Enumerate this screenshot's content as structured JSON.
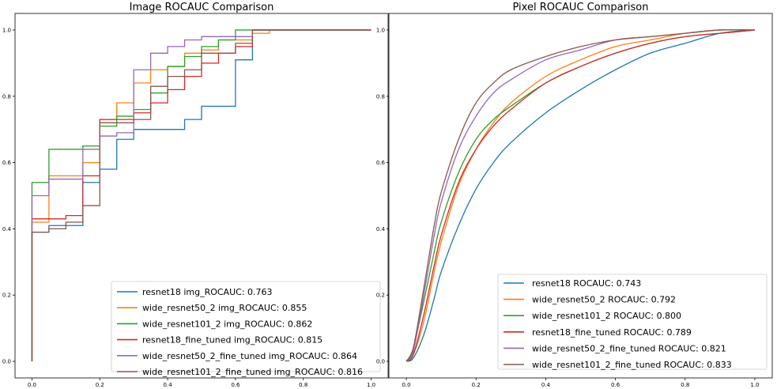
{
  "chart_data": [
    {
      "type": "line",
      "title": "Image ROCAUC Comparison",
      "xlim": [
        -0.05,
        1.05
      ],
      "ylim": [
        -0.05,
        1.05
      ],
      "xticks": [
        "0.0",
        "0.2",
        "0.4",
        "0.6",
        "0.8",
        "1.0"
      ],
      "yticks": [
        "0.0",
        "0.2",
        "0.4",
        "0.6",
        "0.8",
        "1.0"
      ],
      "legend_position": "lower right",
      "step": true,
      "series": [
        {
          "name": "resnet18 img_ROCAUC: 0.763",
          "color": "#1f77b4",
          "x": [
            0,
            0,
            0.05,
            0.1,
            0.15,
            0.2,
            0.25,
            0.3,
            0.35,
            0.4,
            0.45,
            0.5,
            0.55,
            0.6,
            0.65,
            1.0
          ],
          "y": [
            0,
            0.39,
            0.41,
            0.41,
            0.54,
            0.58,
            0.67,
            0.7,
            0.7,
            0.7,
            0.73,
            0.77,
            0.77,
            0.91,
            1.0,
            1.0
          ]
        },
        {
          "name": "wide_resnet50_2 img_ROCAUC: 0.855",
          "color": "#ff7f0e",
          "x": [
            0,
            0,
            0.05,
            0.1,
            0.15,
            0.2,
            0.25,
            0.3,
            0.35,
            0.4,
            0.45,
            0.5,
            0.55,
            0.6,
            0.65,
            0.7,
            1.0
          ],
          "y": [
            0,
            0.42,
            0.56,
            0.56,
            0.6,
            0.73,
            0.78,
            0.84,
            0.88,
            0.89,
            0.93,
            0.94,
            0.97,
            0.97,
            0.99,
            1.0,
            1.0
          ]
        },
        {
          "name": "wide_resnet101_2 img_ROCAUC: 0.862",
          "color": "#2ca02c",
          "x": [
            0,
            0,
            0.05,
            0.1,
            0.15,
            0.2,
            0.25,
            0.3,
            0.35,
            0.4,
            0.45,
            0.5,
            0.55,
            0.6,
            0.65,
            1.0
          ],
          "y": [
            0,
            0.54,
            0.64,
            0.64,
            0.65,
            0.71,
            0.74,
            0.76,
            0.81,
            0.89,
            0.92,
            0.95,
            0.97,
            1.0,
            1.0,
            1.0
          ]
        },
        {
          "name": "resnet18_fine_tuned img_ROCAUC: 0.815",
          "color": "#d62728",
          "x": [
            0,
            0,
            0.05,
            0.1,
            0.15,
            0.2,
            0.25,
            0.3,
            0.35,
            0.4,
            0.45,
            0.5,
            0.55,
            0.6,
            0.65,
            1.0
          ],
          "y": [
            0,
            0.43,
            0.43,
            0.44,
            0.56,
            0.73,
            0.73,
            0.75,
            0.78,
            0.82,
            0.86,
            0.9,
            0.93,
            0.95,
            1.0,
            1.0
          ]
        },
        {
          "name": "wide_resnet50_2_fine_tuned img_ROCAUC: 0.864",
          "color": "#9467bd",
          "x": [
            0,
            0,
            0.05,
            0.1,
            0.15,
            0.2,
            0.25,
            0.3,
            0.35,
            0.4,
            0.45,
            0.5,
            0.55,
            0.6,
            0.65,
            1.0
          ],
          "y": [
            0,
            0.5,
            0.55,
            0.55,
            0.64,
            0.68,
            0.69,
            0.88,
            0.93,
            0.95,
            0.97,
            0.98,
            0.98,
            0.98,
            1.0,
            1.0
          ]
        },
        {
          "name": "wide_resnet101_2_fine_tuned img_ROCAUC: 0.816",
          "color": "#8c564b",
          "x": [
            0,
            0,
            0.05,
            0.1,
            0.15,
            0.2,
            0.25,
            0.3,
            0.35,
            0.4,
            0.45,
            0.5,
            0.55,
            0.6,
            0.65,
            1.0
          ],
          "y": [
            0,
            0.39,
            0.4,
            0.42,
            0.47,
            0.72,
            0.72,
            0.73,
            0.83,
            0.86,
            0.88,
            0.93,
            0.93,
            0.96,
            1.0,
            1.0
          ]
        }
      ]
    },
    {
      "type": "line",
      "title": "Pixel ROCAUC Comparison",
      "xlim": [
        -0.05,
        1.05
      ],
      "ylim": [
        -0.05,
        1.05
      ],
      "xticks": [
        "0.0",
        "0.2",
        "0.4",
        "0.6",
        "0.8",
        "1.0"
      ],
      "yticks": [
        "0.0",
        "0.2",
        "0.4",
        "0.6",
        "0.8",
        "1.0"
      ],
      "legend_position": "lower right",
      "step": false,
      "series": [
        {
          "name": "resnet18 ROCAUC: 0.743",
          "color": "#1f77b4",
          "x": [
            0,
            0.02,
            0.05,
            0.08,
            0.1,
            0.15,
            0.2,
            0.25,
            0.3,
            0.4,
            0.5,
            0.6,
            0.7,
            0.8,
            0.9,
            1.0
          ],
          "y": [
            0,
            0.01,
            0.08,
            0.19,
            0.27,
            0.41,
            0.52,
            0.6,
            0.66,
            0.75,
            0.82,
            0.88,
            0.93,
            0.96,
            0.99,
            1.0
          ]
        },
        {
          "name": "wide_resnet50_2 ROCAUC: 0.792",
          "color": "#ff7f0e",
          "x": [
            0,
            0.02,
            0.05,
            0.08,
            0.1,
            0.15,
            0.2,
            0.25,
            0.3,
            0.4,
            0.5,
            0.6,
            0.7,
            0.8,
            0.9,
            1.0
          ],
          "y": [
            0,
            0.02,
            0.12,
            0.27,
            0.36,
            0.53,
            0.64,
            0.72,
            0.78,
            0.86,
            0.91,
            0.95,
            0.97,
            0.99,
            1.0,
            1.0
          ]
        },
        {
          "name": "wide_resnet101_2 ROCAUC: 0.800",
          "color": "#2ca02c",
          "x": [
            0,
            0.02,
            0.05,
            0.08,
            0.1,
            0.15,
            0.2,
            0.25,
            0.3,
            0.4,
            0.5,
            0.6,
            0.7,
            0.8,
            0.9,
            1.0
          ],
          "y": [
            0,
            0.04,
            0.18,
            0.33,
            0.42,
            0.57,
            0.67,
            0.73,
            0.77,
            0.84,
            0.89,
            0.93,
            0.96,
            0.98,
            0.99,
            1.0
          ]
        },
        {
          "name": "resnet18_fine_tuned ROCAUC: 0.789",
          "color": "#d62728",
          "x": [
            0,
            0.02,
            0.05,
            0.08,
            0.1,
            0.15,
            0.2,
            0.25,
            0.3,
            0.4,
            0.5,
            0.6,
            0.7,
            0.8,
            0.9,
            1.0
          ],
          "y": [
            0,
            0.02,
            0.14,
            0.29,
            0.38,
            0.54,
            0.64,
            0.71,
            0.76,
            0.84,
            0.89,
            0.93,
            0.96,
            0.98,
            0.99,
            1.0
          ]
        },
        {
          "name": "wide_resnet50_2_fine_tuned ROCAUC: 0.821",
          "color": "#9467bd",
          "x": [
            0,
            0.02,
            0.05,
            0.08,
            0.1,
            0.15,
            0.2,
            0.25,
            0.3,
            0.4,
            0.5,
            0.6,
            0.7,
            0.8,
            0.9,
            1.0
          ],
          "y": [
            0,
            0.03,
            0.2,
            0.38,
            0.48,
            0.64,
            0.74,
            0.81,
            0.85,
            0.91,
            0.94,
            0.97,
            0.98,
            0.99,
            1.0,
            1.0
          ]
        },
        {
          "name": "wide_resnet101_2_fine_tuned ROCAUC: 0.833",
          "color": "#8c564b",
          "x": [
            0,
            0.02,
            0.05,
            0.08,
            0.1,
            0.15,
            0.2,
            0.25,
            0.3,
            0.4,
            0.5,
            0.6,
            0.7,
            0.8,
            0.9,
            1.0
          ],
          "y": [
            0,
            0.04,
            0.22,
            0.41,
            0.51,
            0.67,
            0.78,
            0.84,
            0.88,
            0.92,
            0.95,
            0.97,
            0.98,
            0.99,
            1.0,
            1.0
          ]
        }
      ]
    }
  ]
}
